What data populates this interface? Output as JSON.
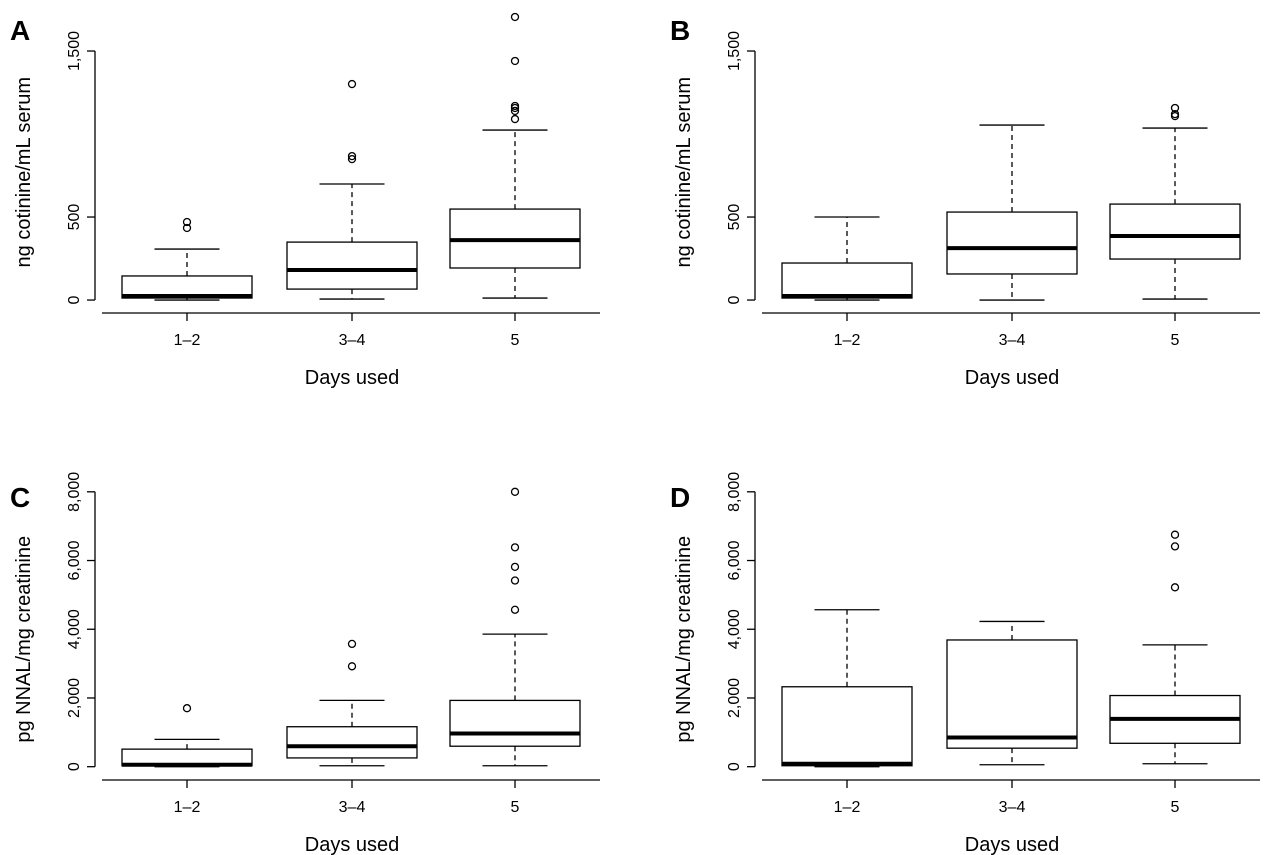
{
  "chart_data": [
    {
      "type": "box",
      "panel": "A",
      "xlabel": "Days used",
      "ylabel": "ng cotinine/mL serum",
      "categories": [
        "1–2",
        "3–4",
        "5"
      ],
      "boxes": [
        {
          "min": 0,
          "q1": 12,
          "median": 24,
          "q3": 145,
          "max": 307,
          "outliers": [
            470,
            434
          ]
        },
        {
          "min": 6,
          "q1": 66,
          "median": 181,
          "q3": 349,
          "max": 699,
          "outliers": [
            867,
            849,
            1301
          ]
        },
        {
          "min": 12,
          "q1": 193,
          "median": 361,
          "q3": 548,
          "max": 1024,
          "outliers": [
            1090,
            1139,
            1157,
            1169,
            1440,
            1705
          ]
        }
      ],
      "ylim": [
        -60,
        1720
      ],
      "yticks": [
        0,
        500,
        {
          "value": 1500,
          "label": "1,500"
        }
      ]
    },
    {
      "type": "box",
      "panel": "B",
      "xlabel": "Days used",
      "ylabel": "ng cotinine/mL serum",
      "categories": [
        "1–2",
        "3–4",
        "5"
      ],
      "boxes": [
        {
          "min": 0,
          "q1": 12,
          "median": 24,
          "q3": 223,
          "max": 500,
          "outliers": []
        },
        {
          "min": 0,
          "q1": 157,
          "median": 313,
          "q3": 530,
          "max": 1054,
          "outliers": []
        },
        {
          "min": 6,
          "q1": 247,
          "median": 386,
          "q3": 578,
          "max": 1036,
          "outliers": [
            1108,
            1120,
            1157
          ]
        }
      ],
      "ylim": [
        -60,
        1720
      ],
      "yticks": [
        0,
        500,
        {
          "value": 1500,
          "label": "1,500"
        }
      ]
    },
    {
      "type": "box",
      "panel": "C",
      "xlabel": "Days used",
      "ylabel": "pg NNAL/mg creatinine",
      "categories": [
        "1–2",
        "3–4",
        "5"
      ],
      "boxes": [
        {
          "min": 0,
          "q1": 28,
          "median": 57,
          "q3": 511,
          "max": 794,
          "outliers": [
            1702
          ]
        },
        {
          "min": 28,
          "q1": 255,
          "median": 596,
          "q3": 1163,
          "max": 1929,
          "outliers": [
            2922,
            3574
          ]
        },
        {
          "min": 28,
          "q1": 596,
          "median": 965,
          "q3": 1929,
          "max": 3858,
          "outliers": [
            4567,
            5418,
            5816,
            6383,
            8000
          ]
        }
      ],
      "ylim": [
        -300,
        8300
      ],
      "yticks": [
        0,
        {
          "value": 2000,
          "label": "2,000"
        },
        {
          "value": 4000,
          "label": "4,000"
        },
        {
          "value": 6000,
          "label": "6,000"
        },
        {
          "value": 8000,
          "label": "8,000"
        }
      ]
    },
    {
      "type": "box",
      "panel": "D",
      "xlabel": "Days used",
      "ylabel": "pg NNAL/mg creatinine",
      "categories": [
        "1–2",
        "3–4",
        "5"
      ],
      "boxes": [
        {
          "min": 0,
          "q1": 28,
          "median": 85,
          "q3": 2326,
          "max": 4567,
          "outliers": []
        },
        {
          "min": 57,
          "q1": 539,
          "median": 851,
          "q3": 3688,
          "max": 4227,
          "outliers": []
        },
        {
          "min": 85,
          "q1": 681,
          "median": 1390,
          "q3": 2071,
          "max": 3546,
          "outliers": [
            5220,
            6411,
            6752
          ]
        }
      ],
      "ylim": [
        -300,
        8300
      ],
      "yticks": [
        0,
        {
          "value": 2000,
          "label": "2,000"
        },
        {
          "value": 4000,
          "label": "4,000"
        },
        {
          "value": 6000,
          "label": "6,000"
        },
        {
          "value": 8000,
          "label": "8,000"
        }
      ]
    }
  ]
}
